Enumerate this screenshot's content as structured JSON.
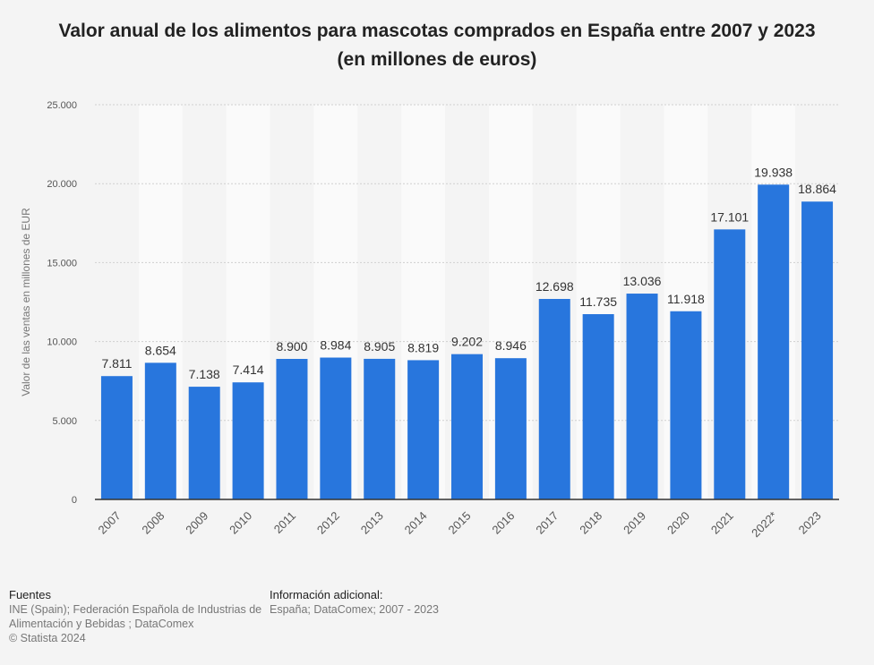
{
  "chart_data": {
    "type": "bar",
    "title": "Valor anual de los alimentos para mascotas comprados en España entre 2007 y 2023",
    "subtitle": "(en millones de euros)",
    "ylabel": "Valor de las ventas en millones de EUR",
    "xlabel": "",
    "ylim": [
      0,
      25000
    ],
    "yticks": [
      0,
      5000,
      10000,
      15000,
      20000,
      25000
    ],
    "ytick_labels": [
      "0",
      "5.000",
      "10.000",
      "15.000",
      "20.000",
      "25.000"
    ],
    "categories": [
      "2007",
      "2008",
      "2009",
      "2010",
      "2011",
      "2012",
      "2013",
      "2014",
      "2015",
      "2016",
      "2017",
      "2018",
      "2019",
      "2020",
      "2021",
      "2022*",
      "2023"
    ],
    "values": [
      7811,
      8654,
      7138,
      7414,
      8900,
      8984,
      8905,
      8819,
      9202,
      8946,
      12698,
      11735,
      13036,
      11918,
      17101,
      19938,
      18864
    ],
    "value_labels": [
      "7.811",
      "8.654",
      "7.138",
      "7.414",
      "8.900",
      "8.984",
      "8.905",
      "8.819",
      "9.202",
      "8.946",
      "12.698",
      "11.735",
      "13.036",
      "11.918",
      "17.101",
      "19.938",
      "18.864"
    ],
    "grid": true,
    "bar_color": "#2876dd"
  },
  "footer": {
    "sources_heading": "Fuentes",
    "sources_line1": "INE (Spain); Federación Española de Industrias de",
    "sources_line2": "Alimentación y Bebidas ; DataComex",
    "copyright": "© Statista 2024",
    "info_heading": "Información adicional:",
    "info_text": "España; DataComex; 2007 - 2023"
  }
}
